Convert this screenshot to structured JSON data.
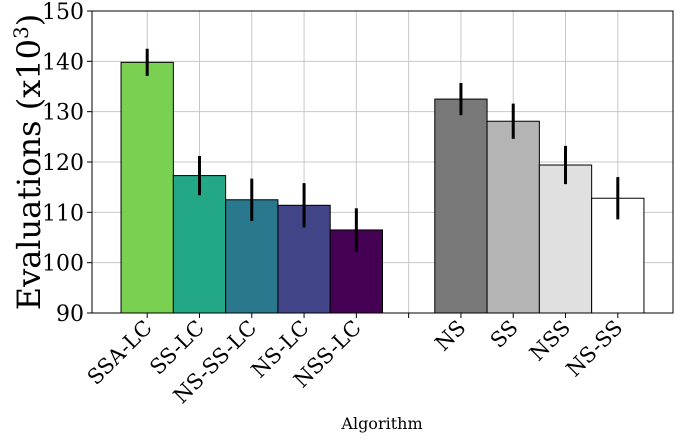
{
  "chart_data": {
    "type": "bar",
    "xlabel": "Algorithm",
    "ylabel": {
      "text": "Evaluations (x10",
      "exponent": "3",
      "suffix": ")"
    },
    "ylim": [
      90,
      150
    ],
    "yticks": [
      90,
      100,
      110,
      120,
      130,
      140,
      150
    ],
    "grid": true,
    "categories": [
      "SSA-LC",
      "SS-LC",
      "NS-SS-LC",
      "NS-LC",
      "NSS-LC",
      "",
      "NS",
      "SS",
      "NSS",
      "NS-SS"
    ],
    "values": [
      139.8,
      117.3,
      112.5,
      111.4,
      106.5,
      null,
      132.5,
      128.1,
      119.4,
      112.8
    ],
    "errors": [
      2.7,
      3.9,
      4.2,
      4.4,
      4.3,
      null,
      3.2,
      3.5,
      3.8,
      4.2
    ],
    "colors": [
      "#7ad151",
      "#22a884",
      "#2a788e",
      "#414487",
      "#440154",
      null,
      "#787878",
      "#b4b4b4",
      "#e0e0e0",
      "#ffffff"
    ]
  }
}
